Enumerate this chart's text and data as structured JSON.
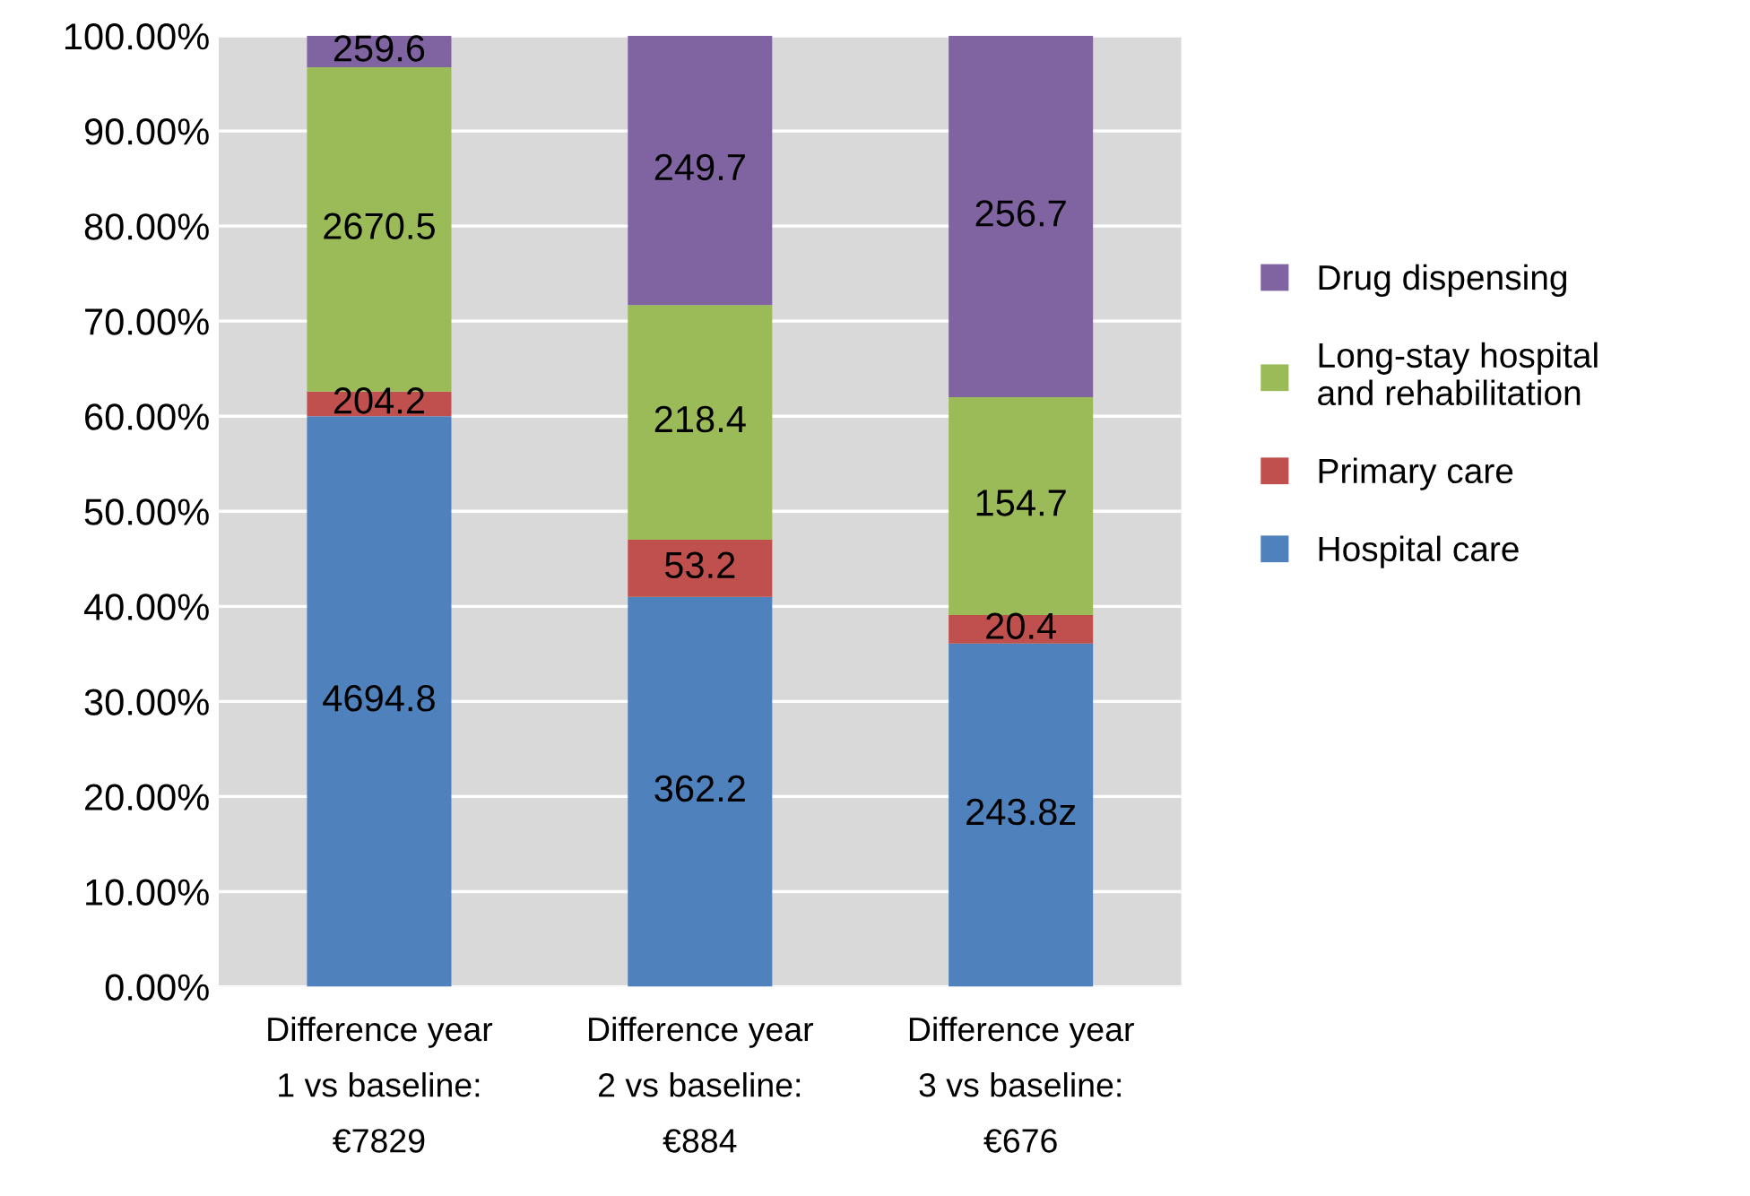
{
  "chart_data": {
    "type": "bar",
    "stacked": true,
    "categories": [
      "Difference year\n1 vs baseline:\n€7829",
      "Difference year\n2 vs baseline:\n€884",
      "Difference year\n3 vs baseline:\n€676"
    ],
    "series": [
      {
        "name": "Hospital care",
        "color": "#4f81bd",
        "values": [
          60.0,
          41.0,
          36.1
        ]
      },
      {
        "name": "Primary care",
        "color": "#c0504d",
        "values": [
          2.6,
          6.0,
          3.0
        ]
      },
      {
        "name": "Long-stay hospital\nand rehabilitation",
        "color": "#9bbb59",
        "values": [
          34.1,
          24.7,
          22.9
        ]
      },
      {
        "name": "Drug dispensing",
        "color": "#8064a2",
        "values": [
          3.3,
          28.3,
          38.0
        ]
      }
    ],
    "annotations": [
      "4694.8",
      "204.2",
      "2670.5",
      "259.6",
      "362.2",
      "53.2",
      "218.4",
      "249.7",
      "243.8z",
      "20.4",
      "154.7",
      "256.7"
    ],
    "ylim": [
      0,
      100
    ],
    "yticks": [
      {
        "value": 0,
        "label": "0.00%"
      },
      {
        "value": 10,
        "label": "10.00%"
      },
      {
        "value": 20,
        "label": "20.00%"
      },
      {
        "value": 30,
        "label": "30.00%"
      },
      {
        "value": 40,
        "label": "40.00%"
      },
      {
        "value": 50,
        "label": "50.00%"
      },
      {
        "value": 60,
        "label": "60.00%"
      },
      {
        "value": 70,
        "label": "70.00%"
      },
      {
        "value": 80,
        "label": "80.00%"
      },
      {
        "value": 90,
        "label": "90.00%"
      },
      {
        "value": 100,
        "label": "100.00%"
      }
    ],
    "grid": "y",
    "legend": "right"
  }
}
